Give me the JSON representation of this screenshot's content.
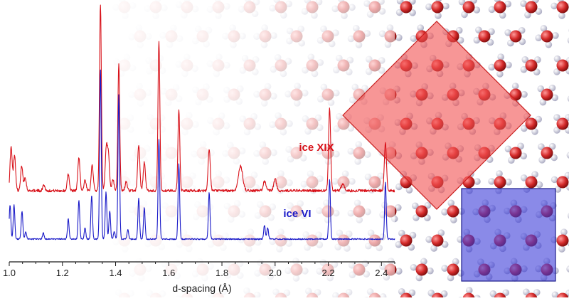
{
  "chart_data": {
    "type": "line",
    "xlabel": "d-spacing (Å)",
    "xlim": [
      1.0,
      2.45
    ],
    "x_ticks": [
      "1.0",
      "1.2",
      "1.4",
      "1.6",
      "1.8",
      "2.0",
      "2.2",
      "2.4"
    ],
    "grid": false,
    "y_axis_shown": false,
    "series": [
      {
        "name": "ice XIX",
        "color": "#d8121a",
        "baseline": 0.0,
        "noise": 0.035,
        "peaks": [
          [
            1.007,
            0.58,
            0.004
          ],
          [
            1.02,
            0.48,
            0.004
          ],
          [
            1.047,
            0.33,
            0.004
          ],
          [
            1.06,
            0.18,
            0.004
          ],
          [
            1.13,
            0.08,
            0.004
          ],
          [
            1.222,
            0.22,
            0.004
          ],
          [
            1.262,
            0.45,
            0.004
          ],
          [
            1.285,
            0.14,
            0.004
          ],
          [
            1.312,
            0.35,
            0.004
          ],
          [
            1.343,
            2.5,
            0.0035
          ],
          [
            1.365,
            0.55,
            0.004
          ],
          [
            1.373,
            0.45,
            0.004
          ],
          [
            1.39,
            0.15,
            0.004
          ],
          [
            1.412,
            1.7,
            0.0035
          ],
          [
            1.44,
            0.12,
            0.004
          ],
          [
            1.487,
            0.62,
            0.004
          ],
          [
            1.508,
            0.38,
            0.004
          ],
          [
            1.563,
            2.0,
            0.0035
          ],
          [
            1.638,
            1.08,
            0.0035
          ],
          [
            1.752,
            0.55,
            0.004
          ],
          [
            1.87,
            0.33,
            0.008
          ],
          [
            1.96,
            0.13,
            0.005
          ],
          [
            2.0,
            0.16,
            0.005
          ],
          [
            2.205,
            1.1,
            0.004
          ],
          [
            2.255,
            0.09,
            0.006
          ],
          [
            2.415,
            0.64,
            0.004
          ]
        ]
      },
      {
        "name": "ice VI",
        "color": "#1a1ac8",
        "baseline": 0.0,
        "noise": 0.02,
        "peaks": [
          [
            1.003,
            0.55,
            0.003
          ],
          [
            1.018,
            0.55,
            0.003
          ],
          [
            1.048,
            0.45,
            0.003
          ],
          [
            1.062,
            0.12,
            0.003
          ],
          [
            1.128,
            0.1,
            0.003
          ],
          [
            1.222,
            0.32,
            0.003
          ],
          [
            1.262,
            0.62,
            0.003
          ],
          [
            1.285,
            0.18,
            0.003
          ],
          [
            1.31,
            0.7,
            0.003
          ],
          [
            1.343,
            2.7,
            0.003
          ],
          [
            1.364,
            0.75,
            0.003
          ],
          [
            1.378,
            0.45,
            0.003
          ],
          [
            1.395,
            0.12,
            0.003
          ],
          [
            1.412,
            2.3,
            0.003
          ],
          [
            1.446,
            0.15,
            0.003
          ],
          [
            1.487,
            0.65,
            0.003
          ],
          [
            1.508,
            0.5,
            0.003
          ],
          [
            1.563,
            1.6,
            0.003
          ],
          [
            1.638,
            1.2,
            0.003
          ],
          [
            1.752,
            0.75,
            0.003
          ],
          [
            1.96,
            0.22,
            0.003
          ],
          [
            1.972,
            0.18,
            0.003
          ],
          [
            2.205,
            0.95,
            0.003
          ],
          [
            2.415,
            0.9,
            0.003
          ]
        ]
      }
    ],
    "annotations": [
      {
        "text": "ice XIX",
        "series": "ice XIX"
      },
      {
        "text": "ice VI",
        "series": "ice VI"
      }
    ]
  },
  "colors": {
    "axis": "#1a1a1a",
    "oxygen": "#d42a2a",
    "hydrogen": "#dcdcea",
    "cell_red": "#f25050",
    "cell_blue": "#3c3cd8"
  }
}
